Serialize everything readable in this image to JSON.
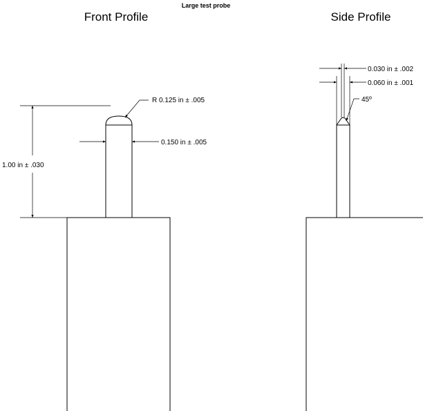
{
  "title": "Large test probe",
  "front": {
    "heading": "Front Profile",
    "radius_label": "R  0.125 in ± .005",
    "diameter_label": "0.150 in ± .005",
    "height_label": "1.00 in ± .030"
  },
  "side": {
    "heading": "Side Profile",
    "tip_width_label": "0.030 in ± .002",
    "shank_width_label": "0.060 in ± .001",
    "angle_label": "45º"
  },
  "colors": {
    "line": "#000000",
    "background": "#ffffff"
  }
}
